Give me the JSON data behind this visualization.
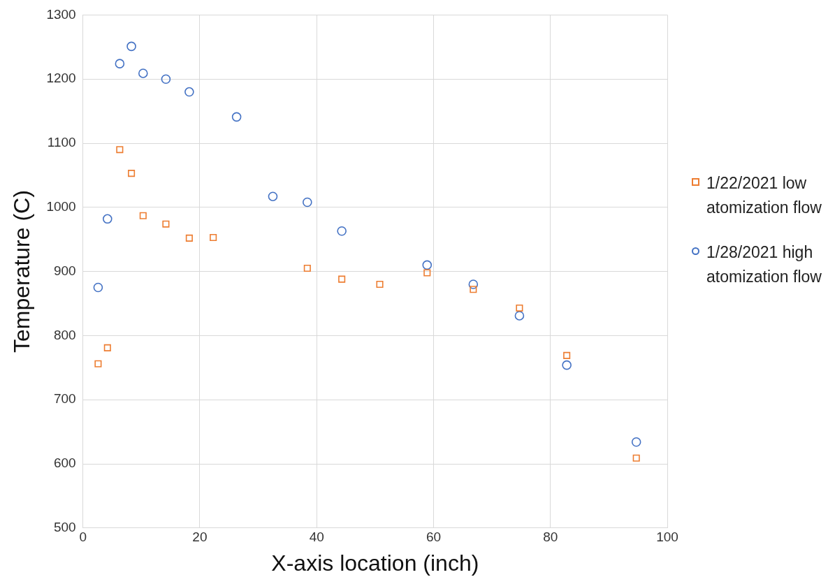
{
  "chart_data": {
    "type": "scatter",
    "xlabel": "X-axis location (inch)",
    "ylabel": "Temperature (C)",
    "xlim": [
      0,
      100
    ],
    "xticks": [
      0,
      20,
      40,
      60,
      80,
      100
    ],
    "ylim": [
      500,
      1300
    ],
    "yticks": [
      500,
      600,
      700,
      800,
      900,
      1000,
      1100,
      1200,
      1300
    ],
    "grid": true,
    "legend": "right",
    "series": [
      {
        "name": "1/22/2021 low atomization flow",
        "color": "#ed7d31",
        "marker": "square",
        "x": [
          2.6,
          4.2,
          6.3,
          8.3,
          10.3,
          14.2,
          18.2,
          22.3,
          38.4,
          44.3,
          50.8,
          58.9,
          66.8,
          74.7,
          82.8,
          94.7
        ],
        "values": [
          756,
          781,
          1090,
          1053,
          987,
          974,
          952,
          953,
          905,
          888,
          880,
          898,
          872,
          843,
          769,
          609
        ]
      },
      {
        "name": "1/28/2021 high atomization flow",
        "color": "#4472c4",
        "marker": "circle",
        "x": [
          2.6,
          4.2,
          6.3,
          8.3,
          10.3,
          14.2,
          18.2,
          26.3,
          32.5,
          38.4,
          44.3,
          58.9,
          66.8,
          74.7,
          82.8,
          94.7
        ],
        "values": [
          875,
          982,
          1224,
          1251,
          1209,
          1200,
          1180,
          1141,
          1017,
          1008,
          963,
          910,
          880,
          831,
          754,
          634
        ]
      }
    ]
  }
}
